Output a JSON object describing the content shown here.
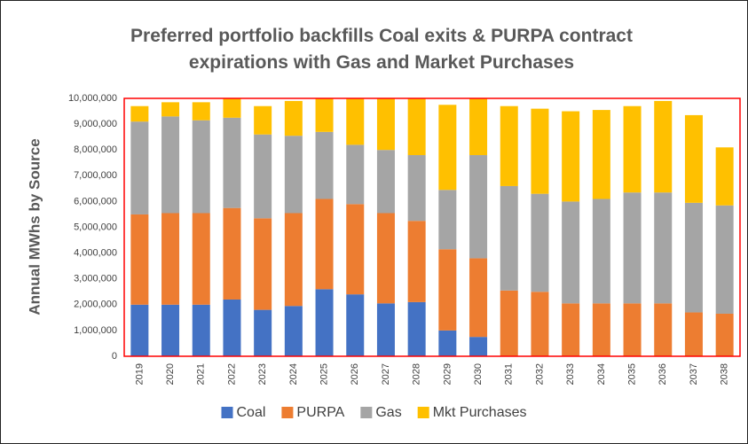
{
  "chart_data": {
    "type": "stacked_bar",
    "title": "Preferred portfolio backfills Coal exits & PURPA contract expirations with Gas and Market Purchases",
    "y_label": "Annual MWhs by Source",
    "categories": [
      "2019",
      "2020",
      "2021",
      "2022",
      "2023",
      "2024",
      "2025",
      "2026",
      "2027",
      "2028",
      "2029",
      "2030",
      "2031",
      "2032",
      "2033",
      "2034",
      "2035",
      "2036",
      "2037",
      "2038"
    ],
    "series": [
      {
        "name": "Coal",
        "color": "#4472c4",
        "values": [
          2000000,
          2000000,
          2000000,
          2200000,
          1800000,
          1950000,
          2600000,
          2400000,
          2050000,
          2100000,
          1000000,
          750000,
          0,
          0,
          0,
          0,
          0,
          0,
          0,
          0
        ]
      },
      {
        "name": "PURPA",
        "color": "#ed7d31",
        "values": [
          3500000,
          3550000,
          3550000,
          3550000,
          3550000,
          3600000,
          3500000,
          3500000,
          3500000,
          3150000,
          3150000,
          3050000,
          2550000,
          2500000,
          2050000,
          2050000,
          2050000,
          2050000,
          1700000,
          1650000
        ]
      },
      {
        "name": "Gas",
        "color": "#a5a5a5",
        "values": [
          3600000,
          3750000,
          3600000,
          3500000,
          3250000,
          3000000,
          2600000,
          2300000,
          2450000,
          2550000,
          2300000,
          4000000,
          4050000,
          3800000,
          3950000,
          4050000,
          4300000,
          4300000,
          4250000,
          4200000
        ]
      },
      {
        "name": "Mkt Purchases",
        "color": "#ffc000",
        "values": [
          600000,
          550000,
          700000,
          750000,
          1100000,
          1350000,
          1300000,
          1800000,
          2000000,
          2200000,
          3300000,
          2200000,
          3100000,
          3300000,
          3500000,
          3450000,
          3350000,
          3550000,
          3400000,
          2250000
        ]
      }
    ],
    "ylim": [
      0,
      10000000
    ],
    "yticks": [
      0,
      {
        "value": 1000000,
        "label": "1,000,000"
      },
      {
        "value": 2000000,
        "label": "2,000,000"
      },
      {
        "value": 3000000,
        "label": "3,000,000"
      },
      {
        "value": 4000000,
        "label": "4,000,000"
      },
      {
        "value": 5000000,
        "label": "5,000,000"
      },
      {
        "value": 6000000,
        "label": "6,000,000"
      },
      {
        "value": 7000000,
        "label": "7,000,000"
      },
      {
        "value": 8000000,
        "label": "8,000,000"
      },
      {
        "value": 9000000,
        "label": "9,000,000"
      },
      {
        "value": 10000000,
        "label": "10,000,000"
      }
    ],
    "grid": false,
    "legend": "bottom",
    "plot_border_color": "#ff0000"
  }
}
